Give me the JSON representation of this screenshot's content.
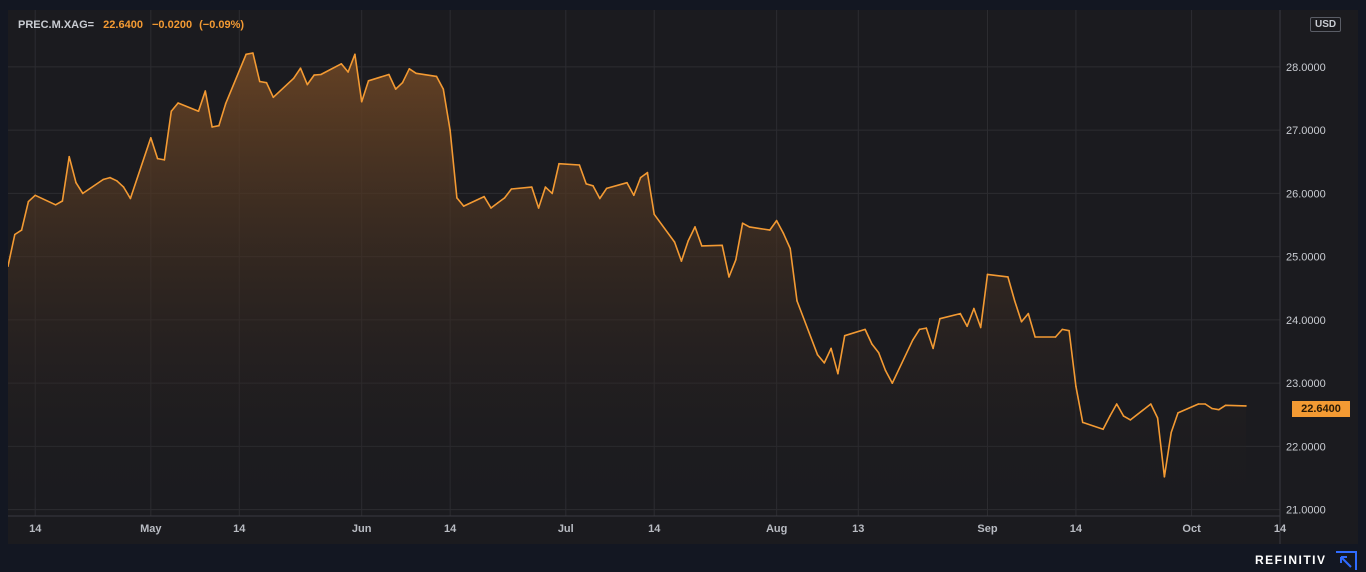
{
  "legend": {
    "symbol": "PREC.M.XAG=",
    "last": "22.6400",
    "change": "−0.0200",
    "change_pct": "(−0.09%)"
  },
  "currency": "USD",
  "last_price_label": "22.6400",
  "brand": {
    "name": "REFINITIV"
  },
  "colors": {
    "line": "#f39a33",
    "fill_top": "#6a4424",
    "background": "#1b1b1f",
    "grid": "#2c2c31"
  },
  "chart_data": {
    "type": "area",
    "title": "",
    "xlabel": "",
    "ylabel": "",
    "x_range": [
      "2023-04-10",
      "2023-10-14"
    ],
    "ylim": [
      20.9,
      28.9
    ],
    "y_ticks": [
      21,
      22,
      23,
      24,
      25,
      26,
      27,
      28
    ],
    "y_tick_labels": [
      "21.0000",
      "22.0000",
      "23.0000",
      "24.0000",
      "25.0000",
      "26.0000",
      "27.0000",
      "28.0000"
    ],
    "x_ticks": [
      {
        "date": "2023-04-14",
        "label": "14"
      },
      {
        "date": "2023-05-01",
        "label": "May"
      },
      {
        "date": "2023-05-14",
        "label": "14"
      },
      {
        "date": "2023-06-01",
        "label": "Jun"
      },
      {
        "date": "2023-06-14",
        "label": "14"
      },
      {
        "date": "2023-07-01",
        "label": "Jul"
      },
      {
        "date": "2023-07-14",
        "label": "14"
      },
      {
        "date": "2023-08-01",
        "label": "Aug"
      },
      {
        "date": "2023-08-13",
        "label": "13"
      },
      {
        "date": "2023-09-01",
        "label": "Sep"
      },
      {
        "date": "2023-09-14",
        "label": "14"
      },
      {
        "date": "2023-10-01",
        "label": "Oct"
      },
      {
        "date": "2023-10-14",
        "label": "14"
      }
    ],
    "grid": true,
    "legend": "top-left",
    "series": [
      {
        "name": "PREC.M.XAG=",
        "points": [
          [
            "2023-04-10",
            24.85
          ],
          [
            "2023-04-11",
            25.35
          ],
          [
            "2023-04-12",
            25.42
          ],
          [
            "2023-04-13",
            25.87
          ],
          [
            "2023-04-14",
            25.97
          ],
          [
            "2023-04-17",
            25.82
          ],
          [
            "2023-04-18",
            25.88
          ],
          [
            "2023-04-19",
            26.58
          ],
          [
            "2023-04-20",
            26.17
          ],
          [
            "2023-04-21",
            26.0
          ],
          [
            "2023-04-24",
            26.22
          ],
          [
            "2023-04-25",
            26.25
          ],
          [
            "2023-04-26",
            26.2
          ],
          [
            "2023-04-27",
            26.1
          ],
          [
            "2023-04-28",
            25.92
          ],
          [
            "2023-05-01",
            26.88
          ],
          [
            "2023-05-02",
            26.55
          ],
          [
            "2023-05-03",
            26.53
          ],
          [
            "2023-05-04",
            27.3
          ],
          [
            "2023-05-05",
            27.43
          ],
          [
            "2023-05-08",
            27.3
          ],
          [
            "2023-05-09",
            27.62
          ],
          [
            "2023-05-10",
            27.05
          ],
          [
            "2023-05-11",
            27.07
          ],
          [
            "2023-05-12",
            27.42
          ],
          [
            "2023-05-15",
            28.2
          ],
          [
            "2023-05-16",
            28.22
          ],
          [
            "2023-05-17",
            27.77
          ],
          [
            "2023-05-18",
            27.75
          ],
          [
            "2023-05-19",
            27.52
          ],
          [
            "2023-05-22",
            27.82
          ],
          [
            "2023-05-23",
            27.98
          ],
          [
            "2023-05-24",
            27.72
          ],
          [
            "2023-05-25",
            27.87
          ],
          [
            "2023-05-26",
            27.88
          ],
          [
            "2023-05-29",
            28.05
          ],
          [
            "2023-05-30",
            27.92
          ],
          [
            "2023-05-31",
            28.2
          ],
          [
            "2023-06-01",
            27.45
          ],
          [
            "2023-06-02",
            27.78
          ],
          [
            "2023-06-05",
            27.88
          ],
          [
            "2023-06-06",
            27.65
          ],
          [
            "2023-06-07",
            27.75
          ],
          [
            "2023-06-08",
            27.97
          ],
          [
            "2023-06-09",
            27.9
          ],
          [
            "2023-06-12",
            27.85
          ],
          [
            "2023-06-13",
            27.65
          ],
          [
            "2023-06-14",
            27.0
          ],
          [
            "2023-06-15",
            25.93
          ],
          [
            "2023-06-16",
            25.8
          ],
          [
            "2023-06-19",
            25.95
          ],
          [
            "2023-06-20",
            25.77
          ],
          [
            "2023-06-21",
            25.85
          ],
          [
            "2023-06-22",
            25.93
          ],
          [
            "2023-06-23",
            26.07
          ],
          [
            "2023-06-26",
            26.1
          ],
          [
            "2023-06-27",
            25.77
          ],
          [
            "2023-06-28",
            26.1
          ],
          [
            "2023-06-29",
            26.0
          ],
          [
            "2023-06-30",
            26.47
          ],
          [
            "2023-07-03",
            26.45
          ],
          [
            "2023-07-04",
            26.15
          ],
          [
            "2023-07-05",
            26.12
          ],
          [
            "2023-07-06",
            25.92
          ],
          [
            "2023-07-07",
            26.08
          ],
          [
            "2023-07-10",
            26.17
          ],
          [
            "2023-07-11",
            25.97
          ],
          [
            "2023-07-12",
            26.25
          ],
          [
            "2023-07-13",
            26.33
          ],
          [
            "2023-07-14",
            25.67
          ],
          [
            "2023-07-17",
            25.23
          ],
          [
            "2023-07-18",
            24.93
          ],
          [
            "2023-07-19",
            25.25
          ],
          [
            "2023-07-20",
            25.47
          ],
          [
            "2023-07-21",
            25.17
          ],
          [
            "2023-07-24",
            25.18
          ],
          [
            "2023-07-25",
            24.68
          ],
          [
            "2023-07-26",
            24.95
          ],
          [
            "2023-07-27",
            25.53
          ],
          [
            "2023-07-28",
            25.47
          ],
          [
            "2023-07-31",
            25.42
          ],
          [
            "2023-08-01",
            25.57
          ],
          [
            "2023-08-02",
            25.37
          ],
          [
            "2023-08-03",
            25.13
          ],
          [
            "2023-08-04",
            24.3
          ],
          [
            "2023-08-07",
            23.45
          ],
          [
            "2023-08-08",
            23.32
          ],
          [
            "2023-08-09",
            23.55
          ],
          [
            "2023-08-10",
            23.15
          ],
          [
            "2023-08-11",
            23.75
          ],
          [
            "2023-08-14",
            23.85
          ],
          [
            "2023-08-15",
            23.62
          ],
          [
            "2023-08-16",
            23.48
          ],
          [
            "2023-08-17",
            23.2
          ],
          [
            "2023-08-18",
            23.0
          ],
          [
            "2023-08-21",
            23.68
          ],
          [
            "2023-08-22",
            23.85
          ],
          [
            "2023-08-23",
            23.87
          ],
          [
            "2023-08-24",
            23.55
          ],
          [
            "2023-08-25",
            24.02
          ],
          [
            "2023-08-28",
            24.1
          ],
          [
            "2023-08-29",
            23.9
          ],
          [
            "2023-08-30",
            24.18
          ],
          [
            "2023-08-31",
            23.88
          ],
          [
            "2023-09-01",
            24.72
          ],
          [
            "2023-09-04",
            24.68
          ],
          [
            "2023-09-05",
            24.3
          ],
          [
            "2023-09-06",
            23.97
          ],
          [
            "2023-09-07",
            24.1
          ],
          [
            "2023-09-08",
            23.73
          ],
          [
            "2023-09-11",
            23.73
          ],
          [
            "2023-09-12",
            23.85
          ],
          [
            "2023-09-13",
            23.83
          ],
          [
            "2023-09-14",
            22.95
          ],
          [
            "2023-09-15",
            22.38
          ],
          [
            "2023-09-18",
            22.27
          ],
          [
            "2023-09-19",
            22.48
          ],
          [
            "2023-09-20",
            22.67
          ],
          [
            "2023-09-21",
            22.48
          ],
          [
            "2023-09-22",
            22.42
          ],
          [
            "2023-09-25",
            22.67
          ],
          [
            "2023-09-26",
            22.45
          ],
          [
            "2023-09-27",
            21.52
          ],
          [
            "2023-09-28",
            22.22
          ],
          [
            "2023-09-29",
            22.53
          ],
          [
            "2023-10-02",
            22.67
          ],
          [
            "2023-10-03",
            22.67
          ],
          [
            "2023-10-04",
            22.6
          ],
          [
            "2023-10-05",
            22.58
          ],
          [
            "2023-10-06",
            22.65
          ],
          [
            "2023-10-09",
            22.64
          ]
        ]
      }
    ]
  }
}
